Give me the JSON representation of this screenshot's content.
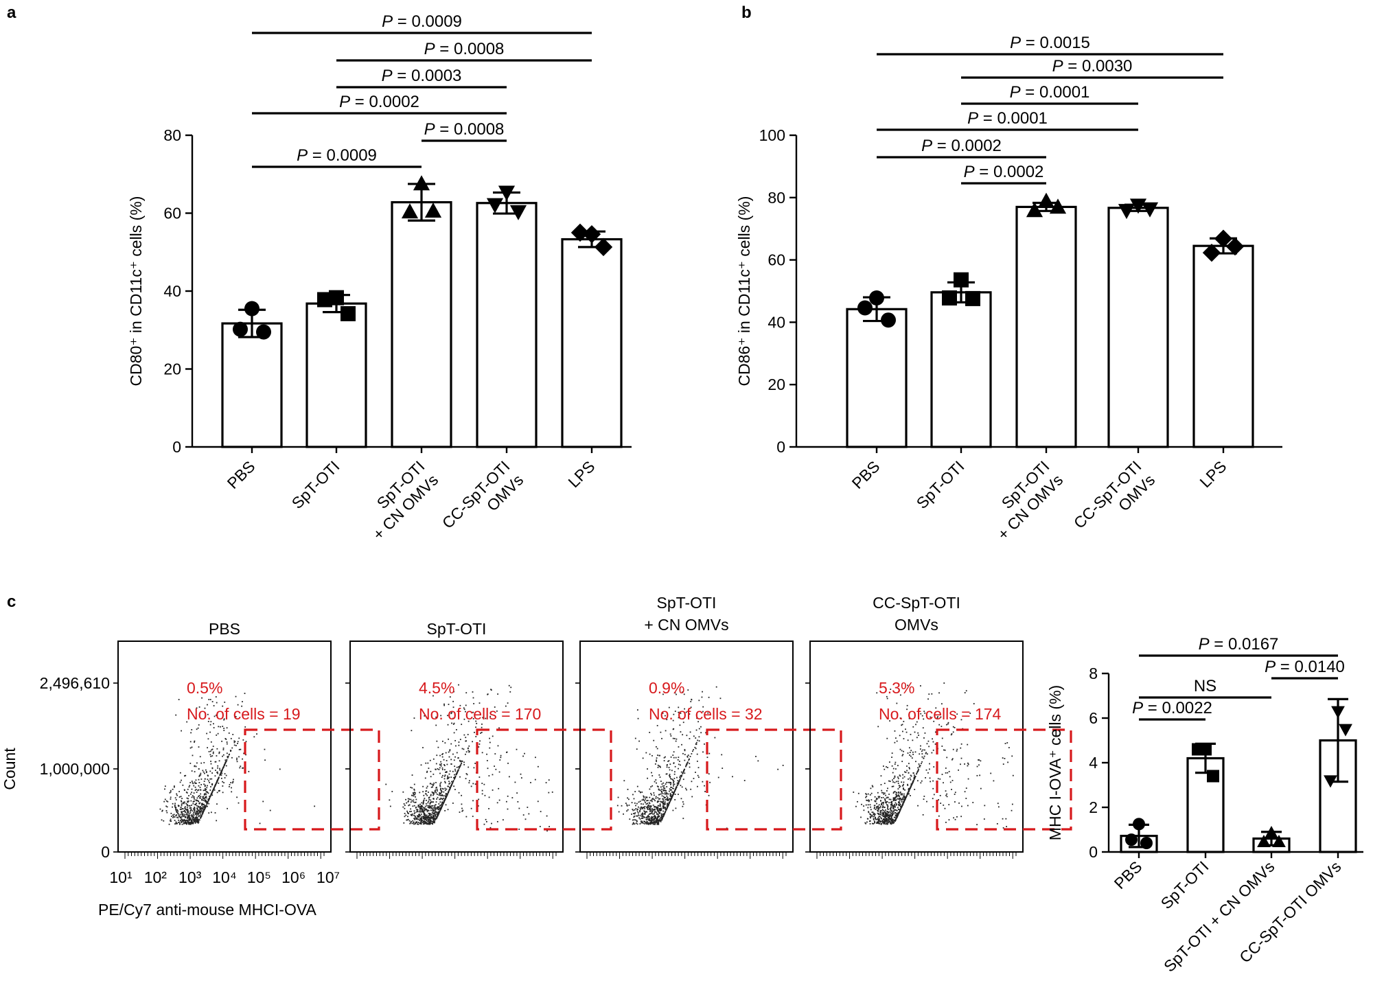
{
  "panel_labels": {
    "a": "a",
    "b": "b",
    "c": "c"
  },
  "colors": {
    "bar_fill": "#ffffff",
    "ink": "#000000",
    "gate": "#d7191c"
  },
  "chart_data": [
    {
      "id": "a",
      "type": "bar",
      "ylabel": "CD80⁺ in CD11c⁺ cells (%)",
      "ylim": [
        0,
        80
      ],
      "yticks": [
        0,
        20,
        40,
        60,
        80
      ],
      "categories": [
        "PBS",
        "SpT-OTI",
        "SpT-OTI + CN OMVs",
        "CC-SpT-OTI OMVs",
        "LPS"
      ],
      "category_lines": [
        [
          "PBS"
        ],
        [
          "SpT-OTI"
        ],
        [
          "SpT-OTI",
          "+ CN OMVs"
        ],
        [
          "CC-SpT-OTI",
          "OMVs"
        ],
        [
          "LPS"
        ]
      ],
      "markers": [
        "circle",
        "square",
        "triangle-up",
        "triangle-down",
        "diamond"
      ],
      "values": [
        31.7,
        36.8,
        62.8,
        62.6,
        53.3
      ],
      "errors": [
        3.5,
        2.2,
        4.7,
        2.7,
        2.0
      ],
      "points": [
        [
          35.5,
          30.2,
          29.5
        ],
        [
          38.3,
          37.8,
          34.2
        ],
        [
          67.5,
          60.3,
          60.5
        ],
        [
          65.4,
          62.2,
          60.4
        ],
        [
          54.6,
          55.0,
          51.3
        ]
      ],
      "comparisons": [
        {
          "a": 0,
          "b": 4,
          "label": "0.0009"
        },
        {
          "a": 1,
          "b": 4,
          "label": "0.0008"
        },
        {
          "a": 1,
          "b": 3,
          "label": "0.0003"
        },
        {
          "a": 0,
          "b": 3,
          "label": "0.0002"
        },
        {
          "a": 2,
          "b": 3,
          "label": "0.0008"
        },
        {
          "a": 0,
          "b": 2,
          "label": "0.0009"
        }
      ]
    },
    {
      "id": "b",
      "type": "bar",
      "ylabel": "CD86⁺ in CD11c⁺ cells (%)",
      "ylim": [
        0,
        100
      ],
      "yticks": [
        0,
        20,
        40,
        60,
        80,
        100
      ],
      "categories": [
        "PBS",
        "SpT-OTI",
        "SpT-OTI + CN OMVs",
        "CC-SpT-OTI OMVs",
        "LPS"
      ],
      "category_lines": [
        [
          "PBS"
        ],
        [
          "SpT-OTI"
        ],
        [
          "SpT-OTI",
          "+ CN OMVs"
        ],
        [
          "CC-SpT-OTI",
          "OMVs"
        ],
        [
          "LPS"
        ]
      ],
      "markers": [
        "circle",
        "square",
        "triangle-up",
        "triangle-down",
        "diamond"
      ],
      "values": [
        44.2,
        49.6,
        77.0,
        76.7,
        64.5
      ],
      "errors": [
        3.8,
        3.2,
        1.3,
        1.0,
        2.4
      ],
      "points": [
        [
          47.8,
          44.6,
          40.7
        ],
        [
          53.6,
          47.8,
          47.6
        ],
        [
          78.8,
          75.8,
          76.9
        ],
        [
          77.6,
          75.9,
          76.4
        ],
        [
          66.8,
          62.3,
          64.3
        ]
      ],
      "comparisons": [
        {
          "a": 0,
          "b": 4,
          "label": "0.0015"
        },
        {
          "a": 1,
          "b": 4,
          "label": "0.0030"
        },
        {
          "a": 1,
          "b": 3,
          "label": "0.0001"
        },
        {
          "a": 0,
          "b": 3,
          "label": "0.0001"
        },
        {
          "a": 0,
          "b": 2,
          "label": "0.0002"
        },
        {
          "a": 1,
          "b": 2,
          "label": "0.0002"
        }
      ]
    },
    {
      "id": "c-flow",
      "type": "scatter",
      "ylabel": "Count",
      "yticks": [
        "2,496,610",
        "1,000,000",
        "0"
      ],
      "xlabel": "PE/Cy7 anti-mouse MHCI-OVA",
      "xticks": [
        "10¹",
        "10²",
        "10³",
        "10⁴",
        "10⁵",
        "10⁶",
        "10⁷"
      ],
      "xrange_log10": [
        1,
        7
      ],
      "panels": [
        {
          "title": [
            "PBS"
          ],
          "percent": "0.5%",
          "cells": "No. of cells = 19"
        },
        {
          "title": [
            "SpT-OTI"
          ],
          "percent": "4.5%",
          "cells": "No. of cells = 170"
        },
        {
          "title": [
            "SpT-OTI",
            "+ CN OMVs"
          ],
          "percent": "0.9%",
          "cells": "No. of cells = 32"
        },
        {
          "title": [
            "CC-SpT-OTI",
            "OMVs"
          ],
          "percent": "5.3%",
          "cells": "No. of cells = 174"
        }
      ]
    },
    {
      "id": "c-bar",
      "type": "bar",
      "ylabel": "MHC I-OVA⁺ cells (%)",
      "ylim": [
        0,
        8
      ],
      "yticks": [
        0,
        2,
        4,
        6,
        8
      ],
      "categories": [
        "PBS",
        "SpT-OTI",
        "SpT-OTI + CN OMVs",
        "CC-SpT-OTI OMVs"
      ],
      "markers": [
        "circle",
        "square",
        "triangle-up",
        "triangle-down"
      ],
      "values": [
        0.72,
        4.2,
        0.6,
        5.0
      ],
      "errors": [
        0.5,
        0.65,
        0.3,
        1.85
      ],
      "points": [
        [
          1.25,
          0.55,
          0.4
        ],
        [
          4.6,
          4.6,
          3.4
        ],
        [
          0.85,
          0.45,
          0.45
        ],
        [
          6.3,
          3.2,
          5.5
        ]
      ],
      "comparisons": [
        {
          "a": 0,
          "b": 3,
          "label": "0.0167"
        },
        {
          "a": 2,
          "b": 3,
          "label": "0.0140"
        },
        {
          "a": 0,
          "b": 2,
          "label": "NS"
        },
        {
          "a": 0,
          "b": 1,
          "label": "0.0022"
        }
      ]
    }
  ]
}
